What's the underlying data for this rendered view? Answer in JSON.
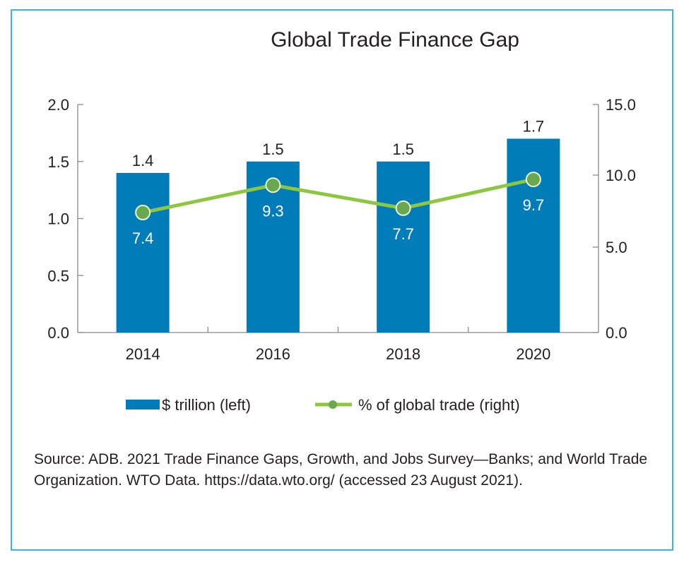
{
  "chart_data": {
    "type": "bar",
    "title": "Global Trade Finance Gap",
    "categories": [
      "2014",
      "2016",
      "2018",
      "2020"
    ],
    "series": [
      {
        "name": "$ trillion (left)",
        "kind": "bar",
        "axis": "left",
        "values": [
          1.4,
          1.5,
          1.5,
          1.7
        ],
        "labels": [
          "1.4",
          "1.5",
          "1.5",
          "1.7"
        ],
        "color": "#007DB8"
      },
      {
        "name": "% of global trade (right)",
        "kind": "line",
        "axis": "right",
        "values": [
          7.4,
          9.3,
          7.7,
          9.7
        ],
        "labels": [
          "7.4",
          "9.3",
          "7.7",
          "9.7"
        ],
        "color": "#8DC63F",
        "marker_color": "#6AA84F"
      }
    ],
    "left_axis": {
      "ylim": [
        0,
        2.0
      ],
      "ticks": [
        0.0,
        0.5,
        1.0,
        1.5,
        2.0
      ],
      "tick_labels": [
        "0.0",
        "0.5",
        "1.0",
        "1.5",
        "2.0"
      ]
    },
    "right_axis": {
      "ylim": [
        0,
        15.0
      ],
      "ticks": [
        0.0,
        5.0,
        10.0,
        15.0
      ],
      "tick_labels": [
        "0.0",
        "5.0",
        "10.0",
        "15.0"
      ]
    },
    "xlabel": "",
    "ylabel": "",
    "grid": false,
    "legend_position": "bottom-center"
  },
  "source_text": "Source: ADB. 2021 Trade Finance Gaps, Growth, and Jobs Survey—Banks; and World Trade Organization. WTO Data. https://data.wto.org/ (accessed 23 August 2021).",
  "colors": {
    "frame": "#3DB4E5",
    "bar": "#007DB8",
    "line": "#8DC63F",
    "marker": "#6AA84F",
    "axis": "#8a8a8a",
    "text": "#231f20"
  }
}
